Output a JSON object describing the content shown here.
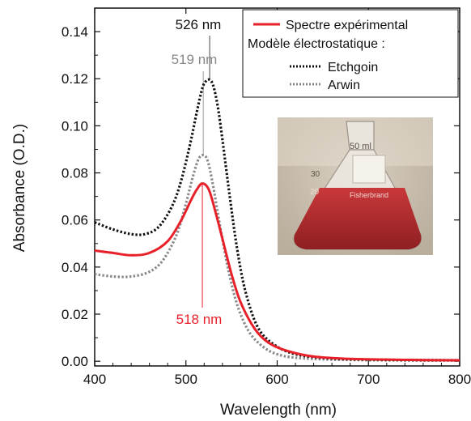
{
  "chart_data": {
    "type": "line",
    "xlabel": "Wavelength (nm)",
    "ylabel": "Absorbance (O.D.)",
    "xlim": [
      400,
      800
    ],
    "ylim": [
      -0.002,
      0.15
    ],
    "x_ticks": [
      400,
      500,
      600,
      700,
      800
    ],
    "y_ticks": [
      0.0,
      0.02,
      0.04,
      0.06,
      0.08,
      0.1,
      0.12,
      0.14
    ],
    "y_tick_labels": [
      "0.00",
      "0.02",
      "0.04",
      "0.06",
      "0.08",
      "0.10",
      "0.12",
      "0.14"
    ],
    "grid": false,
    "legend": {
      "placement": "top-right",
      "header": "Modèle électrostatique :"
    },
    "series": [
      {
        "name": "Spectre expérimental",
        "color": "#e8202a",
        "style": "solid",
        "x": [
          400,
          420,
          440,
          460,
          480,
          495,
          505,
          512,
          518,
          525,
          532,
          540,
          550,
          560,
          575,
          590,
          610,
          640,
          680,
          720,
          760,
          800
        ],
        "y": [
          0.047,
          0.046,
          0.045,
          0.046,
          0.051,
          0.06,
          0.068,
          0.073,
          0.0755,
          0.073,
          0.064,
          0.052,
          0.037,
          0.025,
          0.014,
          0.008,
          0.0045,
          0.002,
          0.001,
          0.0007,
          0.0005,
          0.0004
        ]
      },
      {
        "name": "Etchgoin",
        "color": "#111111",
        "style": "dotted",
        "x": [
          400,
          420,
          440,
          455,
          470,
          485,
          495,
          505,
          512,
          518,
          522,
          526,
          530,
          535,
          540,
          548,
          556,
          565,
          578,
          595,
          620,
          660,
          720,
          800
        ],
        "y": [
          0.059,
          0.056,
          0.054,
          0.054,
          0.057,
          0.066,
          0.077,
          0.093,
          0.106,
          0.116,
          0.119,
          0.1195,
          0.117,
          0.108,
          0.094,
          0.07,
          0.048,
          0.03,
          0.015,
          0.0075,
          0.003,
          0.0012,
          0.0006,
          0.0004
        ]
      },
      {
        "name": "Arwin",
        "color": "#888888",
        "style": "dotted",
        "x": [
          400,
          420,
          440,
          460,
          475,
          490,
          500,
          508,
          514,
          519,
          524,
          530,
          538,
          548,
          558,
          570,
          585,
          600,
          620,
          660,
          720,
          800
        ],
        "y": [
          0.037,
          0.036,
          0.036,
          0.038,
          0.043,
          0.054,
          0.067,
          0.079,
          0.086,
          0.0875,
          0.085,
          0.074,
          0.056,
          0.036,
          0.022,
          0.012,
          0.006,
          0.003,
          0.0015,
          0.0007,
          0.0004,
          0.0003
        ]
      }
    ],
    "annotations": [
      {
        "text": "526 nm",
        "x": 526,
        "color": "#111111"
      },
      {
        "text": "519 nm",
        "x": 519,
        "color": "#888888"
      },
      {
        "text": "518 nm",
        "x": 518,
        "color": "#e8202a"
      }
    ],
    "inset": {
      "depicts": "Erlenmeyer flask containing red gold nanoparticle solution",
      "flask_marks": [
        "50 ml",
        "30",
        "20",
        "Fisherbrand"
      ]
    }
  }
}
